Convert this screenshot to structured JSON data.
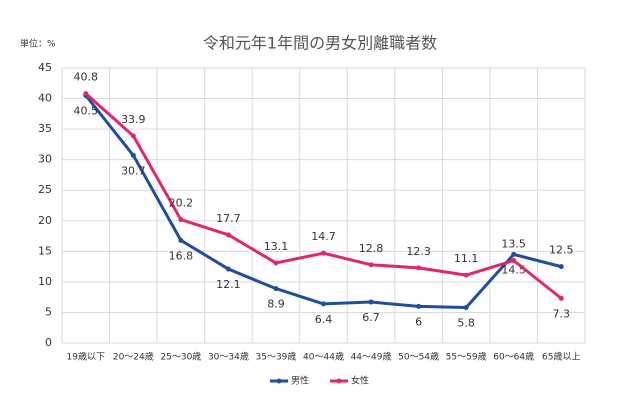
{
  "chart_data": {
    "type": "line",
    "title": "令和元年1年間の男女別離職者数",
    "unit_label": "単位：%",
    "categories": [
      "19歳以下",
      "20～24歳",
      "25～30歳",
      "30～34歳",
      "35～39歳",
      "40～44歳",
      "44～49歳",
      "50～54歳",
      "55～59歳",
      "60～64歳",
      "65歳以上"
    ],
    "series": [
      {
        "name": "男性",
        "color": "#1f4e9c",
        "values": [
          40.5,
          30.7,
          16.8,
          12.1,
          8.9,
          6.4,
          6.7,
          6,
          5.8,
          14.5,
          12.5
        ]
      },
      {
        "name": "女性",
        "color": "#e0266e",
        "values": [
          40.8,
          33.9,
          20.2,
          17.7,
          13.1,
          14.7,
          12.8,
          12.3,
          11.1,
          13.5,
          7.3
        ]
      }
    ],
    "ylim": [
      0,
      45
    ],
    "yticks": [
      0,
      5,
      10,
      15,
      20,
      25,
      30,
      35,
      40,
      45
    ],
    "grid": true
  }
}
